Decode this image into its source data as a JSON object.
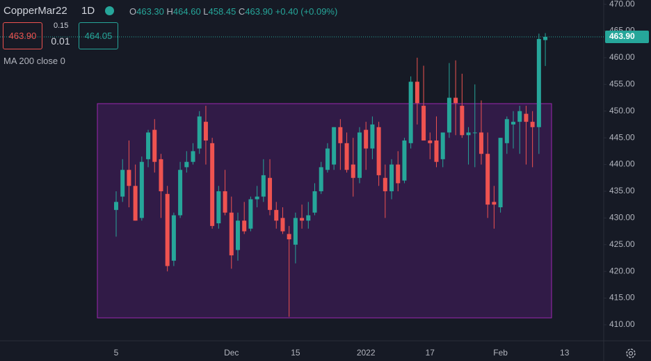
{
  "header": {
    "symbol": "CopperMar22",
    "interval": "1D",
    "o_label": "O",
    "o_value": "463.30",
    "h_label": "H",
    "h_value": "464.60",
    "l_label": "L",
    "l_value": "458.45",
    "c_label": "C",
    "c_value": "463.90",
    "change": "+0.40 (+0.09%)",
    "sell": "463.90",
    "spread": "0.15",
    "quantity": "0.01",
    "buy": "464.05",
    "indicator": "MA 200 close 0"
  },
  "chart_data": {
    "type": "candlestick",
    "categories": [
      "5",
      null,
      null,
      null,
      null,
      null,
      null,
      null,
      null,
      null,
      null,
      null,
      null,
      null,
      null,
      null,
      null,
      null,
      "Dec",
      null,
      null,
      null,
      null,
      null,
      null,
      null,
      null,
      null,
      "15",
      null,
      null,
      null,
      null,
      null,
      null,
      null,
      null,
      null,
      null,
      "2022",
      null,
      null,
      null,
      null,
      null,
      null,
      null,
      null,
      null,
      "17",
      null,
      null,
      null,
      null,
      null,
      null,
      null,
      null,
      null,
      null,
      "Feb",
      null,
      null,
      null,
      null,
      null,
      null,
      null,
      null,
      null,
      "13"
    ],
    "open": [
      431.5,
      434,
      439,
      436,
      430,
      441,
      446.5,
      441,
      434.5,
      422,
      430.5,
      439.5,
      440.5,
      443,
      448,
      444,
      429,
      435,
      431,
      424,
      429.5,
      428,
      433.5,
      434,
      437.5,
      431.5,
      430,
      427,
      425,
      430,
      429.5,
      431,
      435,
      439,
      440,
      447,
      444,
      440,
      437.5,
      446.5,
      443,
      447,
      437.5,
      435,
      440,
      437,
      444,
      455.5,
      451,
      444.5,
      444.5,
      441,
      446,
      452.5,
      451,
      445.5,
      446,
      446,
      442,
      433,
      432,
      444,
      447.5,
      448,
      449.5,
      448,
      447,
      463.3,
      null,
      null,
      null
    ],
    "high": [
      435,
      441,
      444.5,
      440,
      441.5,
      446.5,
      448.5,
      442,
      436,
      431,
      440.5,
      442.5,
      444,
      450,
      451,
      445,
      436,
      439,
      434,
      431,
      433,
      434,
      436,
      441,
      441,
      433,
      432,
      428.5,
      431,
      432.5,
      433,
      436.5,
      440.5,
      444,
      447,
      448.5,
      446,
      445,
      447,
      448,
      449,
      448,
      440,
      441,
      442.5,
      445,
      456.5,
      460,
      458.5,
      446,
      449,
      446,
      459,
      459.5,
      457,
      447,
      455,
      452,
      446,
      436,
      445,
      449,
      450,
      451,
      451,
      450,
      464.5,
      464.6,
      null,
      null,
      null
    ],
    "low": [
      426.5,
      433,
      432,
      429.5,
      429.5,
      439.5,
      438.5,
      430,
      420,
      421,
      430,
      438.5,
      440,
      442,
      440,
      428,
      428,
      430.5,
      420.5,
      422,
      427,
      427.5,
      432,
      433,
      430.5,
      428,
      427,
      411.5,
      421.5,
      428,
      428,
      430.5,
      434.5,
      438.5,
      439,
      439,
      438.5,
      434,
      436.5,
      439,
      441,
      436,
      430,
      433.5,
      435,
      436.5,
      443,
      447.5,
      444.5,
      441,
      439.5,
      439.5,
      445,
      445.5,
      445,
      440,
      439.5,
      440,
      430,
      428,
      431,
      442,
      443,
      442,
      440,
      439.5,
      442,
      458.45,
      null,
      null,
      null
    ],
    "close": [
      433,
      439,
      436,
      429.5,
      440.5,
      446,
      440.5,
      435,
      421,
      430.5,
      439,
      440.5,
      442.5,
      449,
      444.5,
      428.5,
      435,
      431,
      423,
      429.5,
      427.5,
      433.5,
      434,
      438,
      431.5,
      429.5,
      427.5,
      426,
      430,
      429.5,
      430.5,
      435,
      439.5,
      443,
      447,
      444,
      439,
      437.5,
      446,
      443,
      447.5,
      438,
      435,
      440,
      436.5,
      444.5,
      455.5,
      451.5,
      444.5,
      444,
      440.5,
      446,
      452.5,
      451.5,
      445.5,
      446,
      446,
      442,
      432.5,
      432.5,
      445,
      448.5,
      448,
      450,
      448,
      447,
      463.5,
      463.9,
      null,
      null,
      null
    ],
    "up_color": "#26a69a",
    "down_color": "#ef5350",
    "ylim": [
      407,
      470.8
    ],
    "yticks": [
      {
        "value": 410,
        "label": "410.00"
      },
      {
        "value": 415,
        "label": "415.00"
      },
      {
        "value": 420,
        "label": "420.00"
      },
      {
        "value": 425,
        "label": "425.00"
      },
      {
        "value": 430,
        "label": "430.00"
      },
      {
        "value": 435,
        "label": "435.00"
      },
      {
        "value": 440,
        "label": "440.00"
      },
      {
        "value": 445,
        "label": "445.00"
      },
      {
        "value": 450,
        "label": "450.00"
      },
      {
        "value": 455,
        "label": "455.00"
      },
      {
        "value": 460,
        "label": "460.00"
      },
      {
        "value": 465,
        "label": "465.00"
      },
      {
        "value": 470,
        "label": "470.00"
      }
    ],
    "last_price": {
      "value": 463.9,
      "label": "463.90"
    }
  }
}
